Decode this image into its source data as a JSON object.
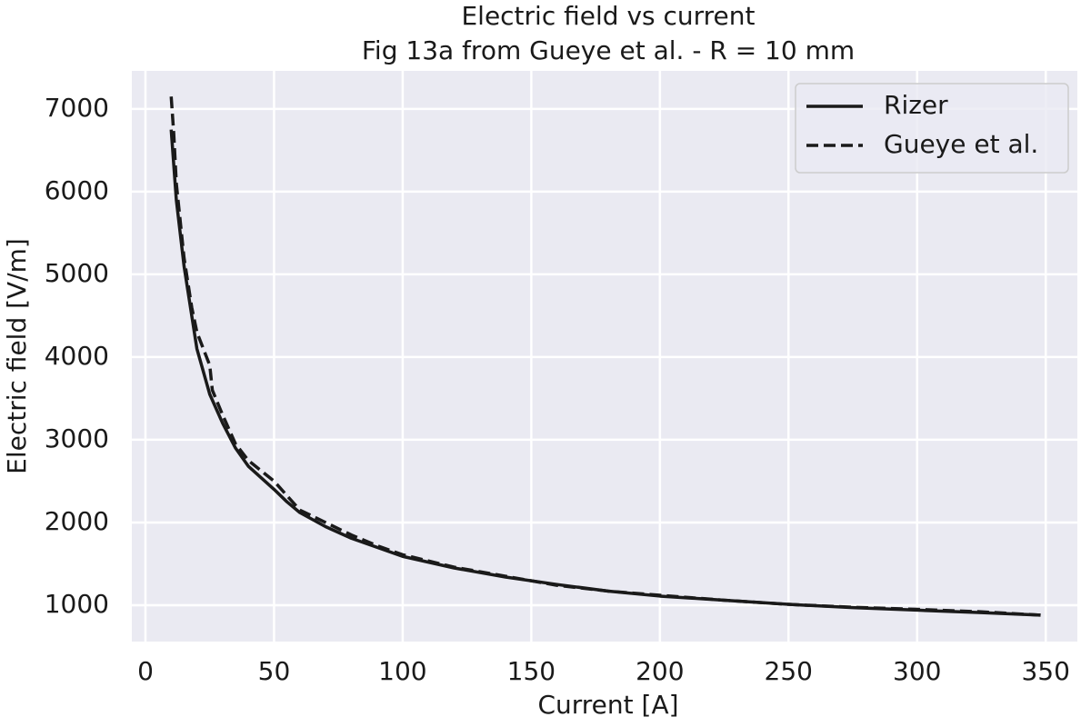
{
  "chart_data": {
    "type": "line",
    "title": "Electric field vs current",
    "subtitle": "Fig 13a from Gueye et al. - R = 10 mm",
    "x_label": "Current [A]",
    "y_label": "Electric field [V/m]",
    "xlim": [
      -5.3,
      362.3
    ],
    "ylim": [
      560,
      7460
    ],
    "xticks": [
      0,
      50,
      100,
      150,
      200,
      250,
      300,
      350
    ],
    "yticks": [
      1000,
      2000,
      3000,
      4000,
      5000,
      6000,
      7000
    ],
    "grid": true,
    "legend": "upper-right",
    "series": [
      {
        "name": "Rizer",
        "color": "#1a1a1a",
        "dash": "solid",
        "x": [
          10,
          12,
          15,
          20,
          25,
          30,
          35,
          40,
          50,
          55,
          60,
          70,
          80,
          90,
          100,
          120,
          140,
          160,
          180,
          200,
          225,
          250,
          275,
          300,
          325,
          348
        ],
        "values": [
          6750,
          5900,
          5100,
          4100,
          3550,
          3200,
          2900,
          2680,
          2400,
          2250,
          2120,
          1950,
          1810,
          1700,
          1590,
          1450,
          1340,
          1250,
          1170,
          1110,
          1060,
          1010,
          970,
          940,
          910,
          880
        ]
      },
      {
        "name": "Gueye et al.",
        "color": "#1a1a1a",
        "dash": "dashed",
        "x": [
          10,
          11,
          12,
          15,
          18,
          20,
          25,
          26,
          30,
          35,
          40,
          50,
          60,
          70,
          80,
          90,
          100,
          120,
          140,
          160,
          180,
          200,
          225,
          250,
          275,
          300,
          325,
          348
        ],
        "values": [
          7150,
          6700,
          6100,
          5200,
          4600,
          4300,
          3900,
          3600,
          3300,
          2950,
          2750,
          2500,
          2150,
          2000,
          1850,
          1720,
          1610,
          1460,
          1350,
          1240,
          1170,
          1120,
          1060,
          1010,
          975,
          950,
          920,
          880
        ]
      }
    ]
  }
}
